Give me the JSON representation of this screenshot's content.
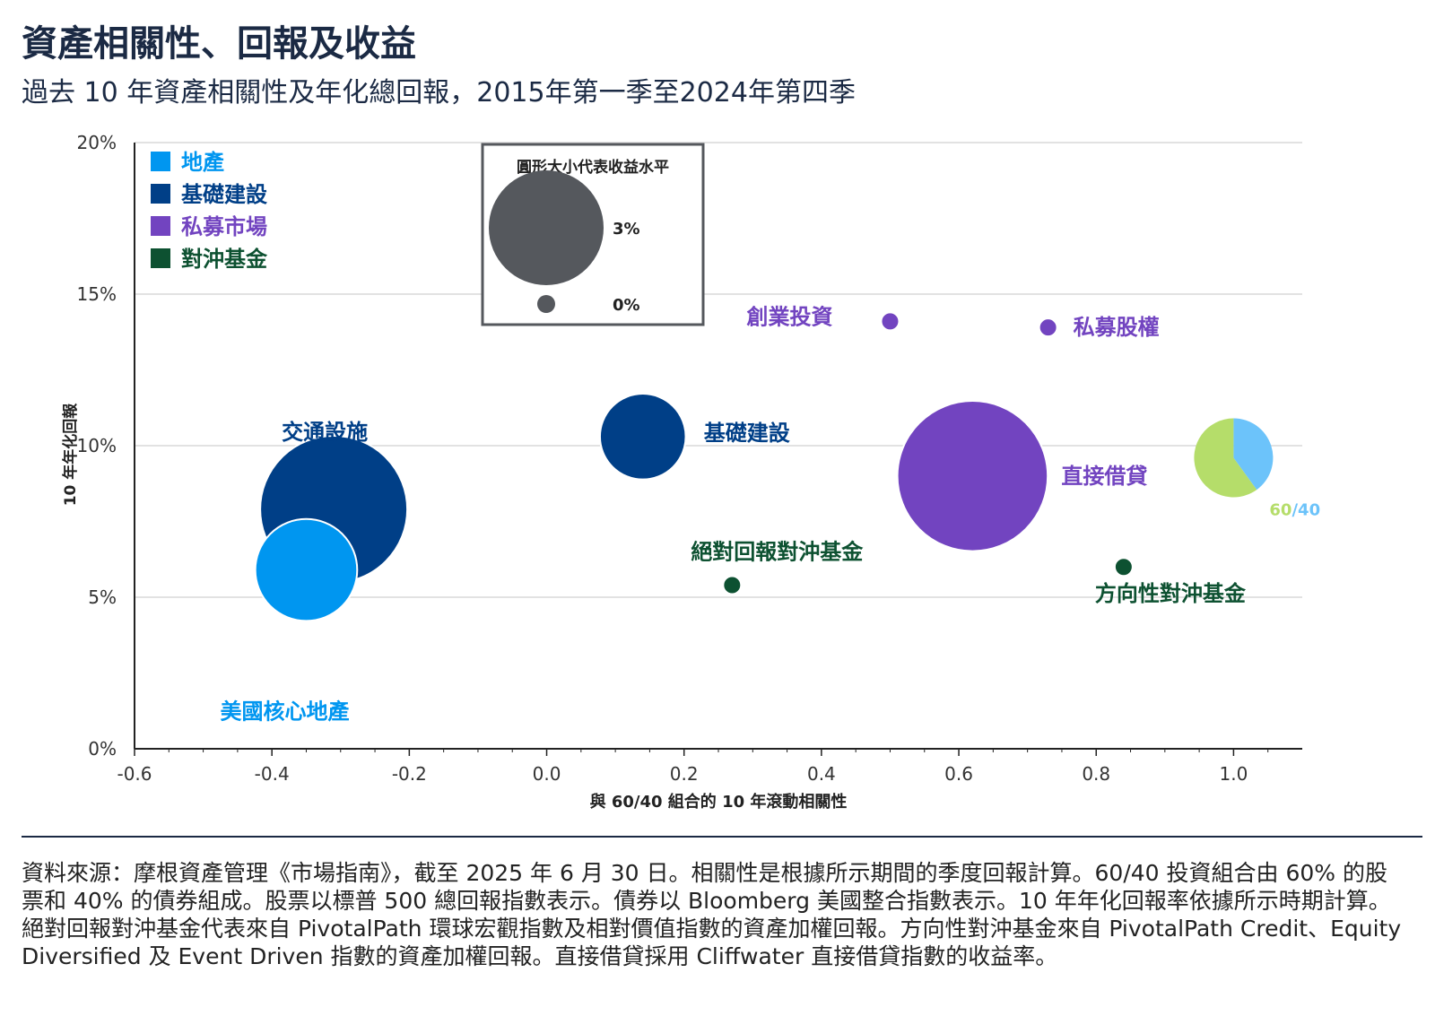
{
  "header": {
    "title": "資產相關性、回報及收益",
    "subtitle": "過去 10 年資產相關性及年化總回報，2015年第一季至2024年第四季"
  },
  "colors": {
    "real_estate": "#0096f0",
    "infrastructure": "#003f87",
    "private_markets": "#7244c0",
    "hedge_funds": "#0d5131",
    "sixty_forty_green": "#b5dd6a",
    "sixty_forty_blue": "#6cc3fa",
    "legend_box_bubble": "#55585d"
  },
  "chart_data": {
    "type": "scatter",
    "xlabel": "與 60/40 組合的 10 年滾動相關性",
    "ylabel": "10 年年化回報",
    "xlim": [
      -0.6,
      1.1
    ],
    "ylim": [
      0,
      20
    ],
    "x_ticks": [
      "-0.6",
      "-0.4",
      "-0.2",
      "0.0",
      "0.2",
      "0.4",
      "0.6",
      "0.8",
      "1.0"
    ],
    "y_ticks": [
      "0%",
      "5%",
      "10%",
      "15%",
      "20%"
    ],
    "grid": "horizontal",
    "legend": [
      {
        "label": "地產",
        "group": "real_estate"
      },
      {
        "label": "基礎建設",
        "group": "infrastructure"
      },
      {
        "label": "私募市場",
        "group": "private_markets"
      },
      {
        "label": "對沖基金",
        "group": "hedge_funds"
      }
    ],
    "size_legend": {
      "title": "圓形大小代表收益水平",
      "entries": [
        {
          "label": "3%",
          "yield": 3
        },
        {
          "label": "0%",
          "yield": 0
        }
      ]
    },
    "points": [
      {
        "label": "交通設施",
        "group": "infrastructure",
        "x": -0.31,
        "y": 7.9,
        "yield": 4.0
      },
      {
        "label": "美國核心地產",
        "group": "real_estate",
        "x": -0.35,
        "y": 5.9,
        "yield": 2.6
      },
      {
        "label": "基礎建設",
        "group": "infrastructure",
        "x": 0.14,
        "y": 10.3,
        "yield": 2.1
      },
      {
        "label": "絕對回報對沖基金",
        "group": "hedge_funds",
        "x": 0.27,
        "y": 5.4,
        "yield": 0
      },
      {
        "label": "創業投資",
        "group": "private_markets",
        "x": 0.5,
        "y": 14.1,
        "yield": 0
      },
      {
        "label": "私募股權",
        "group": "private_markets",
        "x": 0.73,
        "y": 13.9,
        "yield": 0
      },
      {
        "label": "直接借貸",
        "group": "private_markets",
        "x": 0.62,
        "y": 9.0,
        "yield": 4.1
      },
      {
        "label": "方向性對沖基金",
        "group": "hedge_funds",
        "x": 0.84,
        "y": 6.0,
        "yield": 0
      }
    ],
    "pie_point": {
      "label_left": "60",
      "label_sep": "/",
      "label_right": "40",
      "x": 1.0,
      "y": 9.6,
      "slices": [
        {
          "name": "股票",
          "value": 60,
          "color": "#b5dd6a"
        },
        {
          "name": "債券",
          "value": 40,
          "color": "#6cc3fa"
        }
      ]
    }
  },
  "footnote": "資料來源：摩根資產管理《市場指南》，截至 2025 年 6 月 30 日。相關性是根據所示期間的季度回報計算。60/40 投資組合由 60% 的股票和 40% 的債券組成。股票以標普 500 總回報指數表示。債券以 Bloomberg 美國整合指數表示。10 年年化回報率依據所示時期計算。絕對回報對沖基金代表來自 PivotalPath 環球宏觀指數及相對價值指數的資產加權回報。方向性對沖基金來自 PivotalPath Credit、Equity Diversified 及 Event Driven 指數的資產加權回報。直接借貸採用 Cliffwater 直接借貸指數的收益率。"
}
